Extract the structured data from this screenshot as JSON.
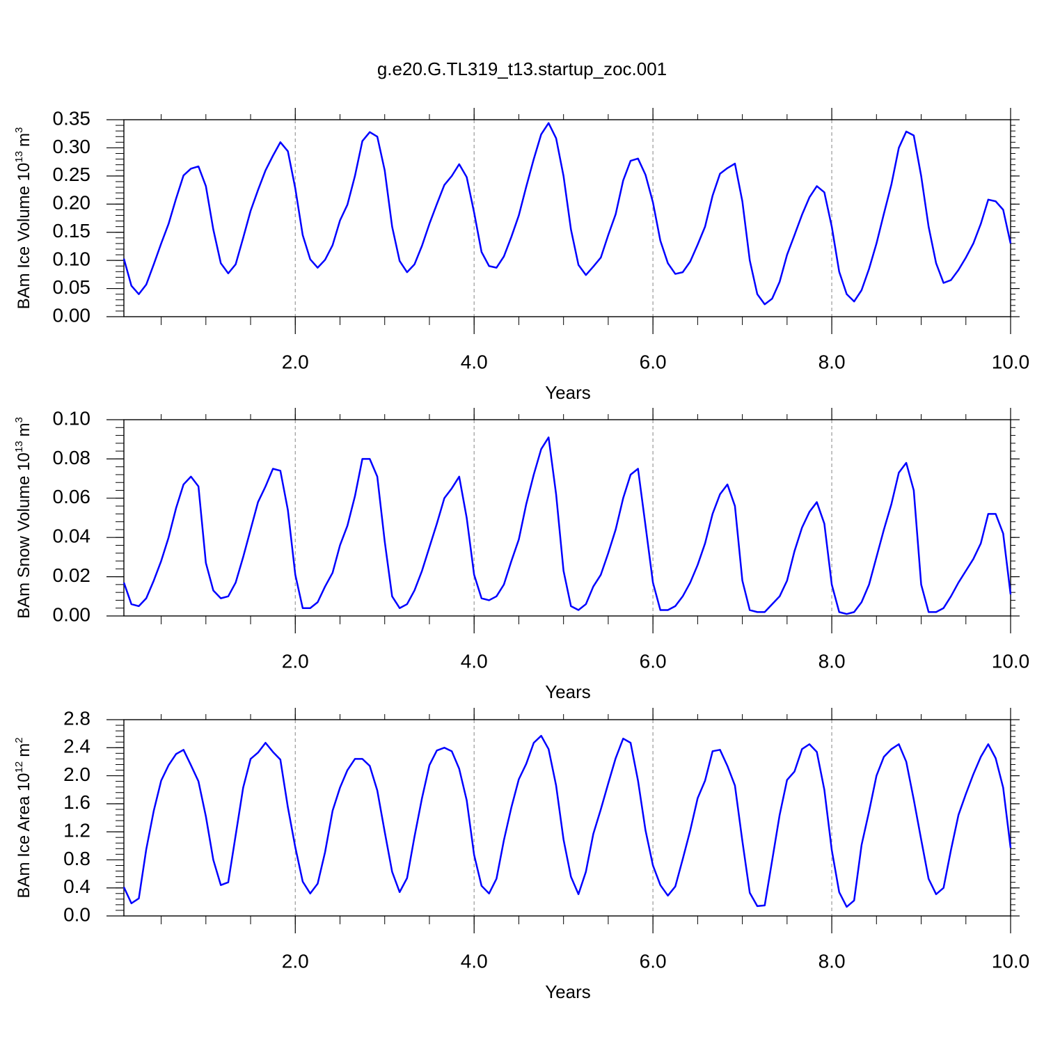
{
  "title": "g.e20.G.TL319_t13.startup_zoc.001",
  "chart_data": [
    {
      "type": "line",
      "xlabel": "Years",
      "ylabel": [
        "BAm Ice Volume 10",
        "13",
        "m",
        "3"
      ],
      "color": "#0000ff",
      "grid": "x",
      "xlim": [
        0.083,
        10
      ],
      "xticks": [
        {
          "value": 2,
          "label": "2.0"
        },
        {
          "value": 4,
          "label": "4.0"
        },
        {
          "value": 6,
          "label": "6.0"
        },
        {
          "value": 8,
          "label": "8.0"
        },
        {
          "value": 10,
          "label": "10.0"
        }
      ],
      "ylim": [
        0,
        0.35
      ],
      "yticks": [
        {
          "value": 0,
          "label": "0.00"
        },
        0.05,
        {
          "value": 0.1,
          "label": "0.10"
        },
        0.15,
        {
          "value": 0.2,
          "label": "0.20"
        },
        0.25,
        {
          "value": 0.3,
          "label": "0.30"
        },
        0.35
      ],
      "x": [
        0.083,
        0.167,
        0.25,
        0.333,
        0.417,
        0.5,
        0.583,
        0.667,
        0.75,
        0.833,
        0.917,
        1,
        1.083,
        1.167,
        1.25,
        1.333,
        1.417,
        1.5,
        1.583,
        1.667,
        1.75,
        1.833,
        1.917,
        2,
        2.083,
        2.167,
        2.25,
        2.333,
        2.417,
        2.5,
        2.583,
        2.667,
        2.75,
        2.833,
        2.917,
        3,
        3.083,
        3.167,
        3.25,
        3.333,
        3.417,
        3.5,
        3.583,
        3.667,
        3.75,
        3.833,
        3.917,
        4,
        4.083,
        4.167,
        4.25,
        4.333,
        4.417,
        4.5,
        4.583,
        4.667,
        4.75,
        4.833,
        4.917,
        5,
        5.083,
        5.167,
        5.25,
        5.333,
        5.417,
        5.5,
        5.583,
        5.667,
        5.75,
        5.833,
        5.917,
        6,
        6.083,
        6.167,
        6.25,
        6.333,
        6.417,
        6.5,
        6.583,
        6.667,
        6.75,
        6.833,
        6.917,
        7,
        7.083,
        7.167,
        7.25,
        7.333,
        7.417,
        7.5,
        7.583,
        7.667,
        7.75,
        7.833,
        7.917,
        8,
        8.083,
        8.167,
        8.25,
        8.333,
        8.417,
        8.5,
        8.583,
        8.667,
        8.75,
        8.833,
        8.917,
        9,
        9.083,
        9.167,
        9.25,
        9.333,
        9.417,
        9.5,
        9.583,
        9.667,
        9.75,
        9.833,
        9.917,
        10
      ],
      "values": [
        0.103,
        0.055,
        0.04,
        0.057,
        0.093,
        0.13,
        0.165,
        0.21,
        0.251,
        0.263,
        0.267,
        0.232,
        0.155,
        0.095,
        0.077,
        0.093,
        0.14,
        0.188,
        0.225,
        0.26,
        0.286,
        0.31,
        0.294,
        0.228,
        0.145,
        0.102,
        0.087,
        0.101,
        0.127,
        0.171,
        0.199,
        0.25,
        0.312,
        0.328,
        0.32,
        0.26,
        0.16,
        0.099,
        0.079,
        0.093,
        0.126,
        0.165,
        0.2,
        0.234,
        0.25,
        0.271,
        0.248,
        0.185,
        0.115,
        0.09,
        0.087,
        0.107,
        0.142,
        0.18,
        0.231,
        0.28,
        0.324,
        0.344,
        0.317,
        0.25,
        0.155,
        0.092,
        0.074,
        0.089,
        0.105,
        0.145,
        0.182,
        0.242,
        0.277,
        0.281,
        0.252,
        0.203,
        0.135,
        0.095,
        0.076,
        0.079,
        0.098,
        0.128,
        0.16,
        0.215,
        0.254,
        0.264,
        0.272,
        0.205,
        0.1,
        0.04,
        0.022,
        0.032,
        0.062,
        0.11,
        0.145,
        0.181,
        0.212,
        0.232,
        0.221,
        0.16,
        0.08,
        0.04,
        0.027,
        0.047,
        0.085,
        0.13,
        0.183,
        0.235,
        0.3,
        0.329,
        0.322,
        0.25,
        0.16,
        0.095,
        0.06,
        0.065,
        0.083,
        0.105,
        0.13,
        0.165,
        0.208,
        0.205,
        0.19,
        0.13
      ]
    },
    {
      "type": "line",
      "xlabel": "Years",
      "ylabel": [
        "BAm Snow Volume 10",
        "13",
        "m",
        "3"
      ],
      "color": "#0000ff",
      "grid": "x",
      "xlim": [
        0.083,
        10
      ],
      "xticks": [
        {
          "value": 2,
          "label": "2.0"
        },
        {
          "value": 4,
          "label": "4.0"
        },
        {
          "value": 6,
          "label": "6.0"
        },
        {
          "value": 8,
          "label": "8.0"
        },
        {
          "value": 10,
          "label": "10.0"
        }
      ],
      "ylim": [
        0,
        0.1
      ],
      "yticks": [
        {
          "value": 0,
          "label": "0.00"
        },
        0.02,
        0.04,
        0.06,
        0.08,
        {
          "value": 0.1,
          "label": "0.10"
        }
      ],
      "x": [
        0.083,
        0.167,
        0.25,
        0.333,
        0.417,
        0.5,
        0.583,
        0.667,
        0.75,
        0.833,
        0.917,
        1,
        1.083,
        1.167,
        1.25,
        1.333,
        1.417,
        1.5,
        1.583,
        1.667,
        1.75,
        1.833,
        1.917,
        2,
        2.083,
        2.167,
        2.25,
        2.333,
        2.417,
        2.5,
        2.583,
        2.667,
        2.75,
        2.833,
        2.917,
        3,
        3.083,
        3.167,
        3.25,
        3.333,
        3.417,
        3.5,
        3.583,
        3.667,
        3.75,
        3.833,
        3.917,
        4,
        4.083,
        4.167,
        4.25,
        4.333,
        4.417,
        4.5,
        4.583,
        4.667,
        4.75,
        4.833,
        4.917,
        5,
        5.083,
        5.167,
        5.25,
        5.333,
        5.417,
        5.5,
        5.583,
        5.667,
        5.75,
        5.833,
        5.917,
        6,
        6.083,
        6.167,
        6.25,
        6.333,
        6.417,
        6.5,
        6.583,
        6.667,
        6.75,
        6.833,
        6.917,
        7,
        7.083,
        7.167,
        7.25,
        7.333,
        7.417,
        7.5,
        7.583,
        7.667,
        7.75,
        7.833,
        7.917,
        8,
        8.083,
        8.167,
        8.25,
        8.333,
        8.417,
        8.5,
        8.583,
        8.667,
        8.75,
        8.833,
        8.917,
        9,
        9.083,
        9.167,
        9.25,
        9.333,
        9.417,
        9.5,
        9.583,
        9.667,
        9.75,
        9.833,
        9.917,
        10
      ],
      "values": [
        0.017,
        0.006,
        0.005,
        0.009,
        0.018,
        0.028,
        0.04,
        0.055,
        0.067,
        0.071,
        0.066,
        0.027,
        0.013,
        0.009,
        0.01,
        0.017,
        0.03,
        0.044,
        0.058,
        0.066,
        0.075,
        0.074,
        0.054,
        0.021,
        0.004,
        0.004,
        0.007,
        0.015,
        0.022,
        0.036,
        0.046,
        0.061,
        0.08,
        0.08,
        0.071,
        0.038,
        0.01,
        0.004,
        0.006,
        0.013,
        0.023,
        0.035,
        0.047,
        0.06,
        0.065,
        0.071,
        0.05,
        0.021,
        0.009,
        0.008,
        0.01,
        0.016,
        0.028,
        0.039,
        0.057,
        0.072,
        0.085,
        0.091,
        0.062,
        0.023,
        0.005,
        0.003,
        0.006,
        0.015,
        0.021,
        0.032,
        0.044,
        0.06,
        0.072,
        0.075,
        0.046,
        0.017,
        0.003,
        0.003,
        0.005,
        0.01,
        0.017,
        0.026,
        0.037,
        0.052,
        0.062,
        0.067,
        0.056,
        0.018,
        0.003,
        0.002,
        0.002,
        0.006,
        0.01,
        0.018,
        0.033,
        0.045,
        0.053,
        0.058,
        0.047,
        0.016,
        0.002,
        0.001,
        0.002,
        0.007,
        0.016,
        0.03,
        0.044,
        0.057,
        0.073,
        0.078,
        0.064,
        0.016,
        0.002,
        0.002,
        0.004,
        0.01,
        0.017,
        0.023,
        0.029,
        0.037,
        0.052,
        0.052,
        0.042,
        0.011
      ]
    },
    {
      "type": "line",
      "xlabel": "Years",
      "ylabel": [
        "BAm Ice Area 10",
        "12",
        "m",
        "2"
      ],
      "color": "#0000ff",
      "grid": "x",
      "xlim": [
        0.083,
        10
      ],
      "xticks": [
        {
          "value": 2,
          "label": "2.0"
        },
        {
          "value": 4,
          "label": "4.0"
        },
        {
          "value": 6,
          "label": "6.0"
        },
        {
          "value": 8,
          "label": "8.0"
        },
        {
          "value": 10,
          "label": "10.0"
        }
      ],
      "ylim": [
        0,
        2.8
      ],
      "yticks": [
        {
          "value": 0,
          "label": "0.0"
        },
        0.4,
        0.8,
        1.2,
        1.6,
        {
          "value": 2,
          "label": "2.0"
        },
        2.4,
        2.8
      ],
      "x": [
        0.083,
        0.167,
        0.25,
        0.333,
        0.417,
        0.5,
        0.583,
        0.667,
        0.75,
        0.833,
        0.917,
        1,
        1.083,
        1.167,
        1.25,
        1.333,
        1.417,
        1.5,
        1.583,
        1.667,
        1.75,
        1.833,
        1.917,
        2,
        2.083,
        2.167,
        2.25,
        2.333,
        2.417,
        2.5,
        2.583,
        2.667,
        2.75,
        2.833,
        2.917,
        3,
        3.083,
        3.167,
        3.25,
        3.333,
        3.417,
        3.5,
        3.583,
        3.667,
        3.75,
        3.833,
        3.917,
        4,
        4.083,
        4.167,
        4.25,
        4.333,
        4.417,
        4.5,
        4.583,
        4.667,
        4.75,
        4.833,
        4.917,
        5,
        5.083,
        5.167,
        5.25,
        5.333,
        5.417,
        5.5,
        5.583,
        5.667,
        5.75,
        5.833,
        5.917,
        6,
        6.083,
        6.167,
        6.25,
        6.333,
        6.417,
        6.5,
        6.583,
        6.667,
        6.75,
        6.833,
        6.917,
        7,
        7.083,
        7.167,
        7.25,
        7.333,
        7.417,
        7.5,
        7.583,
        7.667,
        7.75,
        7.833,
        7.917,
        8,
        8.083,
        8.167,
        8.25,
        8.333,
        8.417,
        8.5,
        8.583,
        8.667,
        8.75,
        8.833,
        8.917,
        9,
        9.083,
        9.167,
        9.25,
        9.333,
        9.417,
        9.5,
        9.583,
        9.667,
        9.75,
        9.833,
        9.917,
        10
      ],
      "values": [
        0.41,
        0.18,
        0.25,
        0.95,
        1.5,
        1.93,
        2.15,
        2.31,
        2.37,
        2.15,
        1.92,
        1.42,
        0.8,
        0.44,
        0.48,
        1.15,
        1.83,
        2.24,
        2.33,
        2.47,
        2.34,
        2.23,
        1.55,
        0.98,
        0.49,
        0.32,
        0.46,
        0.91,
        1.5,
        1.83,
        2.08,
        2.24,
        2.24,
        2.14,
        1.79,
        1.2,
        0.63,
        0.34,
        0.54,
        1.13,
        1.68,
        2.15,
        2.36,
        2.4,
        2.35,
        2.1,
        1.65,
        0.87,
        0.43,
        0.32,
        0.53,
        1.08,
        1.55,
        1.95,
        2.17,
        2.47,
        2.57,
        2.38,
        1.86,
        1.09,
        0.56,
        0.31,
        0.63,
        1.17,
        1.52,
        1.89,
        2.25,
        2.53,
        2.47,
        1.93,
        1.22,
        0.72,
        0.44,
        0.29,
        0.42,
        0.81,
        1.22,
        1.68,
        1.93,
        2.35,
        2.37,
        2.14,
        1.86,
        1.07,
        0.33,
        0.14,
        0.15,
        0.79,
        1.44,
        1.94,
        2.06,
        2.38,
        2.45,
        2.34,
        1.8,
        0.94,
        0.34,
        0.13,
        0.22,
        1.01,
        1.49,
        2.0,
        2.27,
        2.38,
        2.45,
        2.2,
        1.66,
        1.09,
        0.53,
        0.31,
        0.4,
        0.94,
        1.44,
        1.74,
        2.02,
        2.27,
        2.45,
        2.25,
        1.83,
        0.97
      ]
    }
  ]
}
